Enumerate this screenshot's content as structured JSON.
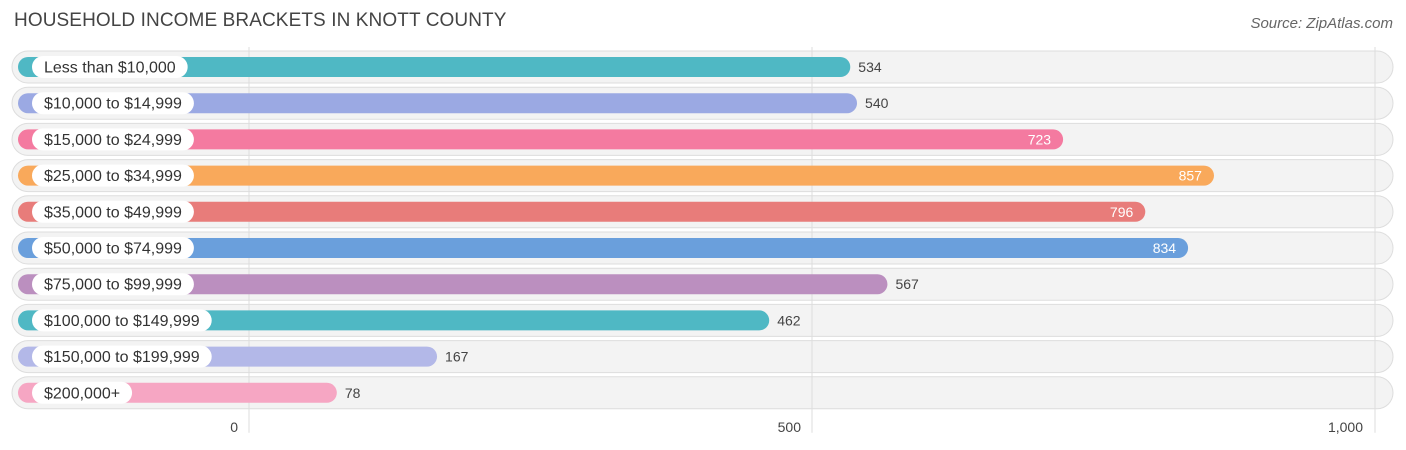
{
  "title": "HOUSEHOLD INCOME BRACKETS IN KNOTT COUNTY",
  "source": "Source: ZipAtlas.com",
  "chart_data": {
    "type": "bar",
    "orientation": "horizontal",
    "categories": [
      "Less than $10,000",
      "$10,000 to $14,999",
      "$15,000 to $24,999",
      "$25,000 to $34,999",
      "$35,000 to $49,999",
      "$50,000 to $74,999",
      "$75,000 to $99,999",
      "$100,000 to $149,999",
      "$150,000 to $199,999",
      "$200,000+"
    ],
    "values": [
      534,
      540,
      723,
      857,
      796,
      834,
      567,
      462,
      167,
      78
    ],
    "value_labels": [
      "534",
      "540",
      "723",
      "857",
      "796",
      "834",
      "567",
      "462",
      "167",
      "78"
    ],
    "colors": [
      "#4fb8c4",
      "#9ba9e3",
      "#f47aa0",
      "#f9a95b",
      "#e87c7a",
      "#6a9fdc",
      "#bb8fbf",
      "#4fb8c4",
      "#b3b8e8",
      "#f6a6c3"
    ],
    "xlim": [
      0,
      1000
    ],
    "xticks": [
      0,
      500,
      1000
    ],
    "xtick_labels": [
      "0",
      "500",
      "1,000"
    ],
    "grid": true,
    "legend": "none"
  }
}
